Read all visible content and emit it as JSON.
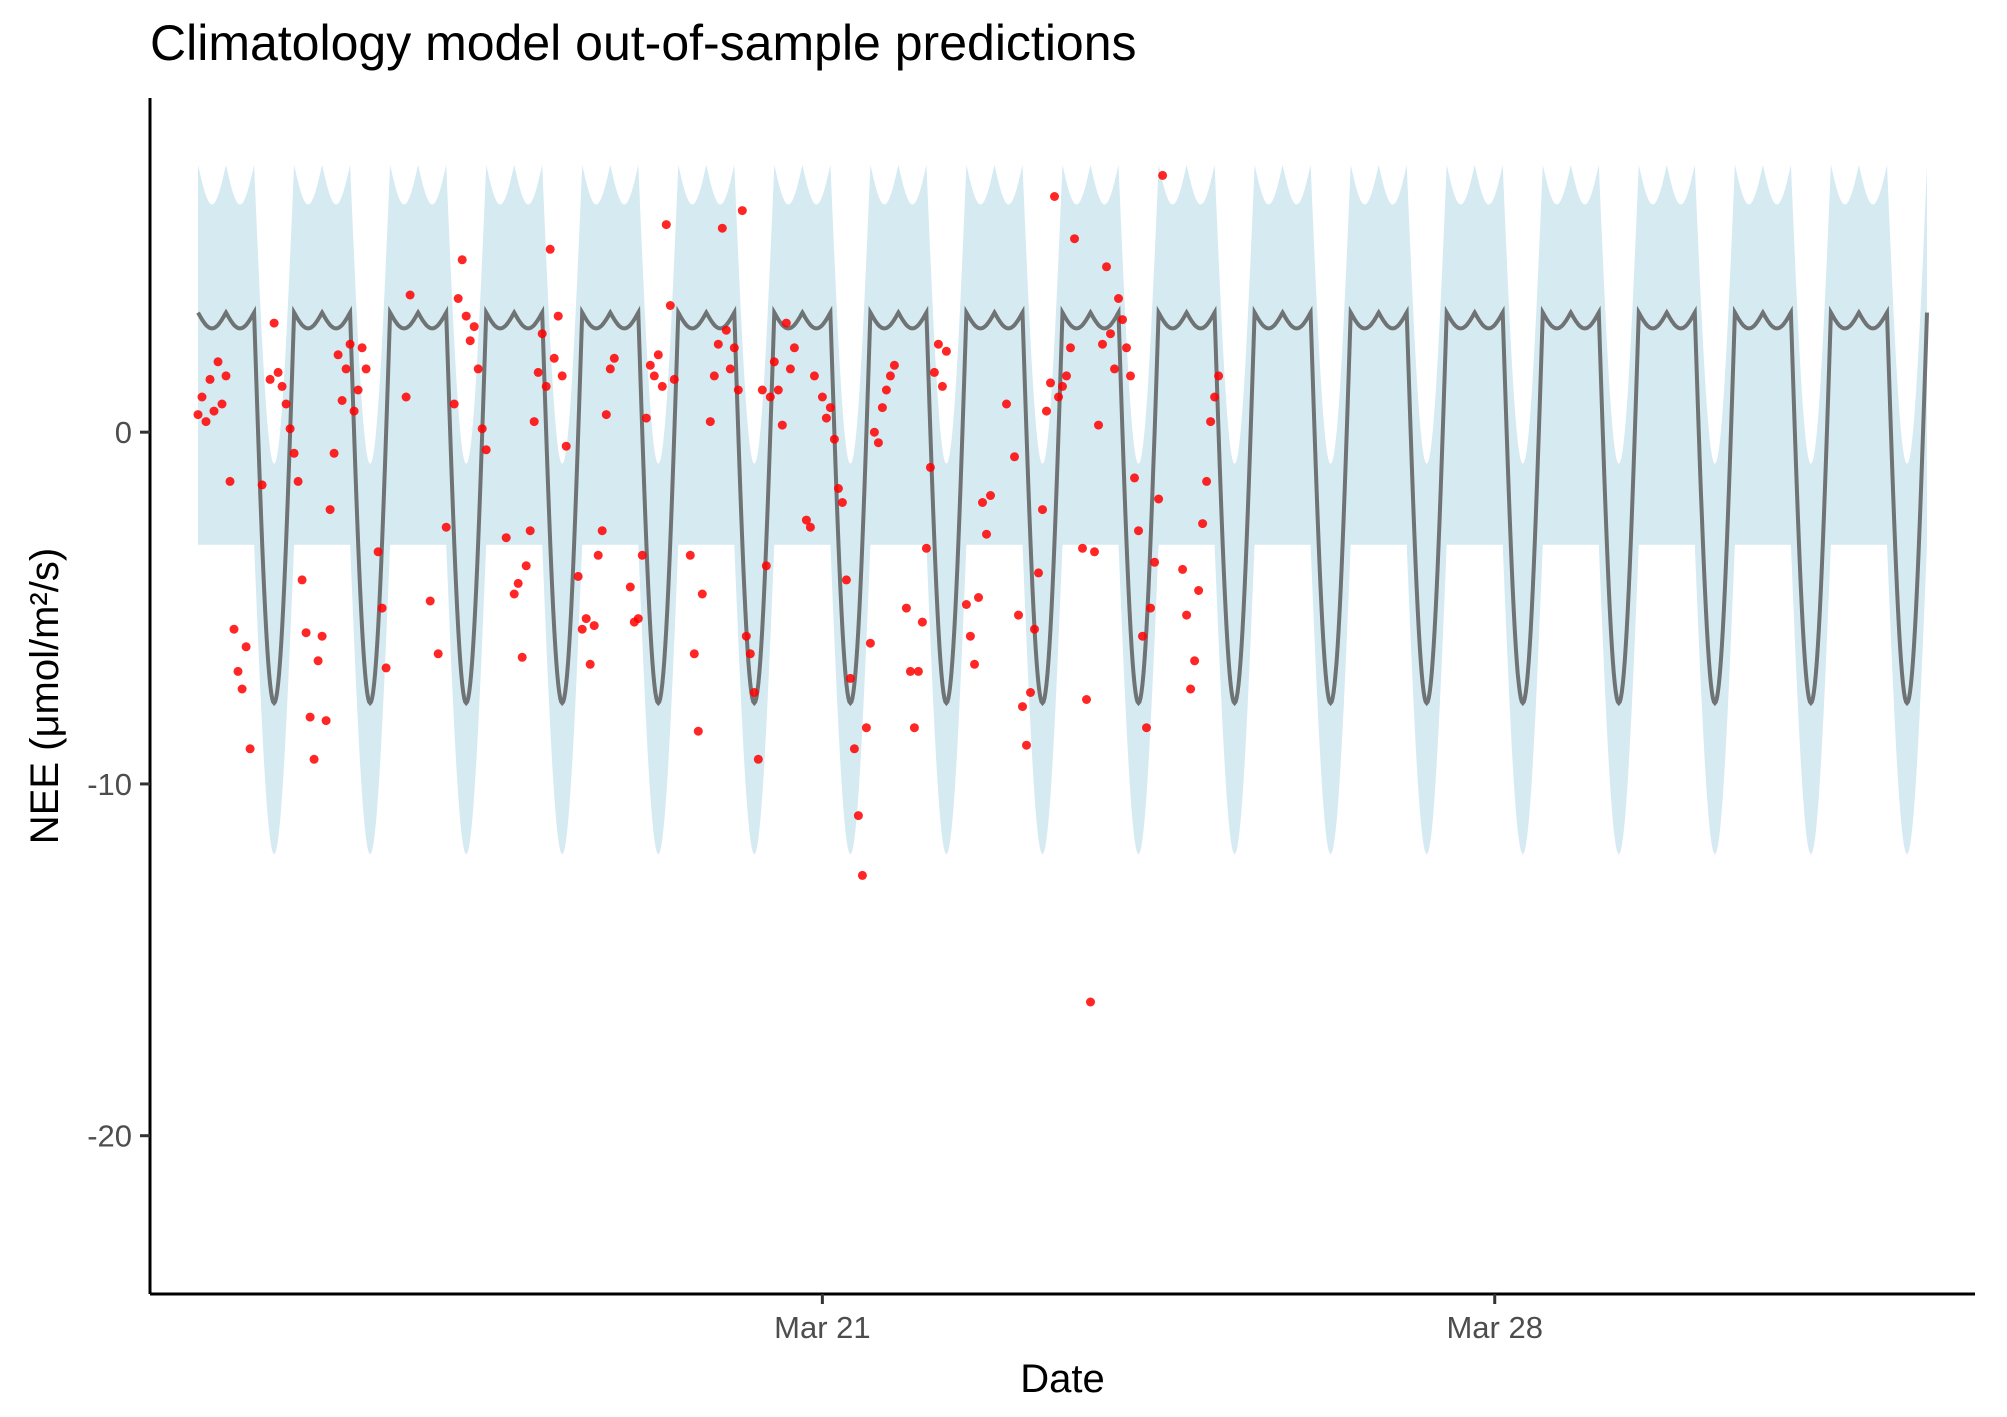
{
  "chart_data": {
    "type": "line",
    "title": "Climatology model out-of-sample predictions",
    "xlabel": "Date",
    "ylabel": "NEE (μmol/m²/s)",
    "x_tick_labels": [
      "Mar 21",
      "Mar 28"
    ],
    "y_tick_labels": [
      "-20",
      "-10",
      "0"
    ],
    "y_ticks": [
      -20,
      -10,
      0
    ],
    "xlim": [
      "2023-03-14",
      "2023-04-02"
    ],
    "ylim": [
      -24.5,
      9.5
    ],
    "data_range": [
      "2023-03-14 12:00",
      "2023-04-01 12:00"
    ],
    "grid": false,
    "legend": "none",
    "colors": {
      "band": "#d6eaf2",
      "forecast_mean": "#6f7374",
      "observed": "#ff0000",
      "axis": "#000000"
    },
    "series": [
      {
        "kind": "ribbon",
        "description": "Forecast 95% interval",
        "lower_daily_min": -12.0,
        "upper_daily_max": 7.6,
        "upper_night": -0.9,
        "lower_night": -3.2
      },
      {
        "kind": "line",
        "description": "Forecast mean (daily cycle)",
        "daily_min": -7.7,
        "daily_max": 3.4
      },
      {
        "kind": "scatter",
        "description": "Observed NEE",
        "points": [
          [
            "2023-03-14 12:00",
            0.5
          ],
          [
            "2023-03-14 13:00",
            1.0
          ],
          [
            "2023-03-14 14:00",
            0.3
          ],
          [
            "2023-03-14 15:00",
            1.5
          ],
          [
            "2023-03-14 16:00",
            0.6
          ],
          [
            "2023-03-14 17:00",
            2.0
          ],
          [
            "2023-03-14 18:00",
            0.8
          ],
          [
            "2023-03-14 19:00",
            1.6
          ],
          [
            "2023-03-14 20:00",
            -1.4
          ],
          [
            "2023-03-14 21:00",
            -5.6
          ],
          [
            "2023-03-14 22:00",
            -6.8
          ],
          [
            "2023-03-14 23:00",
            -7.3
          ],
          [
            "2023-03-15 00:00",
            -6.1
          ],
          [
            "2023-03-15 01:00",
            -9.0
          ],
          [
            "2023-03-15 04:00",
            -1.5
          ],
          [
            "2023-03-15 06:00",
            1.5
          ],
          [
            "2023-03-15 07:00",
            3.1
          ],
          [
            "2023-03-15 08:00",
            1.7
          ],
          [
            "2023-03-15 09:00",
            1.3
          ],
          [
            "2023-03-15 10:00",
            0.8
          ],
          [
            "2023-03-15 11:00",
            0.1
          ],
          [
            "2023-03-15 12:00",
            -0.6
          ],
          [
            "2023-03-15 13:00",
            -1.4
          ],
          [
            "2023-03-15 14:00",
            -4.2
          ],
          [
            "2023-03-15 15:00",
            -5.7
          ],
          [
            "2023-03-15 16:00",
            -8.1
          ],
          [
            "2023-03-15 17:00",
            -9.3
          ],
          [
            "2023-03-15 18:00",
            -6.5
          ],
          [
            "2023-03-15 19:00",
            -5.8
          ],
          [
            "2023-03-15 20:00",
            -8.2
          ],
          [
            "2023-03-15 21:00",
            -2.2
          ],
          [
            "2023-03-15 22:00",
            -0.6
          ],
          [
            "2023-03-15 23:00",
            2.2
          ],
          [
            "2023-03-16 00:00",
            0.9
          ],
          [
            "2023-03-16 01:00",
            1.8
          ],
          [
            "2023-03-16 02:00",
            2.5
          ],
          [
            "2023-03-16 03:00",
            0.6
          ],
          [
            "2023-03-16 04:00",
            1.2
          ],
          [
            "2023-03-16 05:00",
            2.4
          ],
          [
            "2023-03-16 06:00",
            1.8
          ],
          [
            "2023-03-16 09:00",
            -3.4
          ],
          [
            "2023-03-16 10:00",
            -5.0
          ],
          [
            "2023-03-16 11:00",
            -6.7
          ],
          [
            "2023-03-16 16:00",
            1.0
          ],
          [
            "2023-03-16 17:00",
            3.9
          ],
          [
            "2023-03-16 22:00",
            -4.8
          ],
          [
            "2023-03-17 00:00",
            -6.3
          ],
          [
            "2023-03-17 02:00",
            -2.7
          ],
          [
            "2023-03-17 04:00",
            0.8
          ],
          [
            "2023-03-17 05:00",
            3.8
          ],
          [
            "2023-03-17 06:00",
            4.9
          ],
          [
            "2023-03-17 07:00",
            3.3
          ],
          [
            "2023-03-17 08:00",
            2.6
          ],
          [
            "2023-03-17 09:00",
            3.0
          ],
          [
            "2023-03-17 10:00",
            1.8
          ],
          [
            "2023-03-17 11:00",
            0.1
          ],
          [
            "2023-03-17 12:00",
            -0.5
          ],
          [
            "2023-03-17 17:00",
            -3.0
          ],
          [
            "2023-03-17 19:00",
            -4.6
          ],
          [
            "2023-03-17 20:00",
            -4.3
          ],
          [
            "2023-03-17 21:00",
            -6.4
          ],
          [
            "2023-03-17 22:00",
            -3.8
          ],
          [
            "2023-03-17 23:00",
            -2.8
          ],
          [
            "2023-03-18 00:00",
            0.3
          ],
          [
            "2023-03-18 01:00",
            1.7
          ],
          [
            "2023-03-18 02:00",
            2.8
          ],
          [
            "2023-03-18 03:00",
            1.3
          ],
          [
            "2023-03-18 04:00",
            5.2
          ],
          [
            "2023-03-18 05:00",
            2.1
          ],
          [
            "2023-03-18 06:00",
            3.3
          ],
          [
            "2023-03-18 07:00",
            1.6
          ],
          [
            "2023-03-18 08:00",
            -0.4
          ],
          [
            "2023-03-18 11:00",
            -4.1
          ],
          [
            "2023-03-18 12:00",
            -5.6
          ],
          [
            "2023-03-18 13:00",
            -5.3
          ],
          [
            "2023-03-18 14:00",
            -6.6
          ],
          [
            "2023-03-18 15:00",
            -5.5
          ],
          [
            "2023-03-18 16:00",
            -3.5
          ],
          [
            "2023-03-18 17:00",
            -2.8
          ],
          [
            "2023-03-18 18:00",
            0.5
          ],
          [
            "2023-03-18 19:00",
            1.8
          ],
          [
            "2023-03-18 20:00",
            2.1
          ],
          [
            "2023-03-19 00:00",
            -4.4
          ],
          [
            "2023-03-19 01:00",
            -5.4
          ],
          [
            "2023-03-19 02:00",
            -5.3
          ],
          [
            "2023-03-19 03:00",
            -3.5
          ],
          [
            "2023-03-19 04:00",
            0.4
          ],
          [
            "2023-03-19 05:00",
            1.9
          ],
          [
            "2023-03-19 06:00",
            1.6
          ],
          [
            "2023-03-19 07:00",
            2.2
          ],
          [
            "2023-03-19 08:00",
            1.3
          ],
          [
            "2023-03-19 09:00",
            5.9
          ],
          [
            "2023-03-19 10:00",
            3.6
          ],
          [
            "2023-03-19 11:00",
            1.5
          ],
          [
            "2023-03-19 15:00",
            -3.5
          ],
          [
            "2023-03-19 16:00",
            -6.3
          ],
          [
            "2023-03-19 17:00",
            -8.5
          ],
          [
            "2023-03-19 18:00",
            -4.6
          ],
          [
            "2023-03-19 20:00",
            0.3
          ],
          [
            "2023-03-19 21:00",
            1.6
          ],
          [
            "2023-03-19 22:00",
            2.5
          ],
          [
            "2023-03-19 23:00",
            5.8
          ],
          [
            "2023-03-20 00:00",
            2.9
          ],
          [
            "2023-03-20 01:00",
            1.8
          ],
          [
            "2023-03-20 02:00",
            2.4
          ],
          [
            "2023-03-20 03:00",
            1.2
          ],
          [
            "2023-03-20 04:00",
            6.3
          ],
          [
            "2023-03-20 05:00",
            -5.8
          ],
          [
            "2023-03-20 06:00",
            -6.3
          ],
          [
            "2023-03-20 07:00",
            -7.4
          ],
          [
            "2023-03-20 08:00",
            -9.3
          ],
          [
            "2023-03-20 09:00",
            1.2
          ],
          [
            "2023-03-20 10:00",
            -3.8
          ],
          [
            "2023-03-20 11:00",
            1.0
          ],
          [
            "2023-03-20 12:00",
            2.0
          ],
          [
            "2023-03-20 13:00",
            1.2
          ],
          [
            "2023-03-20 14:00",
            0.2
          ],
          [
            "2023-03-20 15:00",
            3.1
          ],
          [
            "2023-03-20 16:00",
            1.8
          ],
          [
            "2023-03-20 17:00",
            2.4
          ],
          [
            "2023-03-20 20:00",
            -2.5
          ],
          [
            "2023-03-20 21:00",
            -2.7
          ],
          [
            "2023-03-20 22:00",
            1.6
          ],
          [
            "2023-03-21 00:00",
            1.0
          ],
          [
            "2023-03-21 01:00",
            0.4
          ],
          [
            "2023-03-21 02:00",
            0.7
          ],
          [
            "2023-03-21 03:00",
            -0.2
          ],
          [
            "2023-03-21 04:00",
            -1.6
          ],
          [
            "2023-03-21 05:00",
            -2.0
          ],
          [
            "2023-03-21 06:00",
            -4.2
          ],
          [
            "2023-03-21 07:00",
            -7.0
          ],
          [
            "2023-03-21 08:00",
            -9.0
          ],
          [
            "2023-03-21 09:00",
            -10.9
          ],
          [
            "2023-03-21 10:00",
            -12.6
          ],
          [
            "2023-03-21 11:00",
            -8.4
          ],
          [
            "2023-03-21 12:00",
            -6.0
          ],
          [
            "2023-03-21 13:00",
            0.0
          ],
          [
            "2023-03-21 14:00",
            -0.3
          ],
          [
            "2023-03-21 15:00",
            0.7
          ],
          [
            "2023-03-21 16:00",
            1.2
          ],
          [
            "2023-03-21 17:00",
            1.6
          ],
          [
            "2023-03-21 18:00",
            1.9
          ],
          [
            "2023-03-21 21:00",
            -5.0
          ],
          [
            "2023-03-21 22:00",
            -6.8
          ],
          [
            "2023-03-21 23:00",
            -8.4
          ],
          [
            "2023-03-22 00:00",
            -6.8
          ],
          [
            "2023-03-22 01:00",
            -5.4
          ],
          [
            "2023-03-22 02:00",
            -3.3
          ],
          [
            "2023-03-22 03:00",
            -1.0
          ],
          [
            "2023-03-22 04:00",
            1.7
          ],
          [
            "2023-03-22 05:00",
            2.5
          ],
          [
            "2023-03-22 06:00",
            1.3
          ],
          [
            "2023-03-22 07:00",
            2.3
          ],
          [
            "2023-03-22 12:00",
            -4.9
          ],
          [
            "2023-03-22 13:00",
            -5.8
          ],
          [
            "2023-03-22 14:00",
            -6.6
          ],
          [
            "2023-03-22 15:00",
            -4.7
          ],
          [
            "2023-03-22 16:00",
            -2.0
          ],
          [
            "2023-03-22 17:00",
            -2.9
          ],
          [
            "2023-03-22 18:00",
            -1.8
          ],
          [
            "2023-03-22 22:00",
            0.8
          ],
          [
            "2023-03-23 00:00",
            -0.7
          ],
          [
            "2023-03-23 01:00",
            -5.2
          ],
          [
            "2023-03-23 02:00",
            -7.8
          ],
          [
            "2023-03-23 03:00",
            -8.9
          ],
          [
            "2023-03-23 04:00",
            -7.4
          ],
          [
            "2023-03-23 05:00",
            -5.6
          ],
          [
            "2023-03-23 06:00",
            -4.0
          ],
          [
            "2023-03-23 07:00",
            -2.2
          ],
          [
            "2023-03-23 08:00",
            0.6
          ],
          [
            "2023-03-23 09:00",
            1.4
          ],
          [
            "2023-03-23 10:00",
            6.7
          ],
          [
            "2023-03-23 11:00",
            1.0
          ],
          [
            "2023-03-23 12:00",
            1.3
          ],
          [
            "2023-03-23 13:00",
            1.6
          ],
          [
            "2023-03-23 14:00",
            2.4
          ],
          [
            "2023-03-23 15:00",
            5.5
          ],
          [
            "2023-03-23 17:00",
            -3.3
          ],
          [
            "2023-03-23 18:00",
            -7.6
          ],
          [
            "2023-03-23 19:00",
            -16.2
          ],
          [
            "2023-03-23 20:00",
            -3.4
          ],
          [
            "2023-03-23 21:00",
            0.2
          ],
          [
            "2023-03-23 22:00",
            2.5
          ],
          [
            "2023-03-23 23:00",
            4.7
          ],
          [
            "2023-03-24 00:00",
            2.8
          ],
          [
            "2023-03-24 01:00",
            1.8
          ],
          [
            "2023-03-24 02:00",
            3.8
          ],
          [
            "2023-03-24 03:00",
            3.2
          ],
          [
            "2023-03-24 04:00",
            2.4
          ],
          [
            "2023-03-24 05:00",
            1.6
          ],
          [
            "2023-03-24 06:00",
            -1.3
          ],
          [
            "2023-03-24 07:00",
            -2.8
          ],
          [
            "2023-03-24 08:00",
            -5.8
          ],
          [
            "2023-03-24 09:00",
            -8.4
          ],
          [
            "2023-03-24 10:00",
            -5.0
          ],
          [
            "2023-03-24 11:00",
            -3.7
          ],
          [
            "2023-03-24 12:00",
            -1.9
          ],
          [
            "2023-03-24 13:00",
            7.3
          ],
          [
            "2023-03-24 18:00",
            -3.9
          ],
          [
            "2023-03-24 19:00",
            -5.2
          ],
          [
            "2023-03-24 20:00",
            -7.3
          ],
          [
            "2023-03-24 21:00",
            -6.5
          ],
          [
            "2023-03-24 22:00",
            -4.5
          ],
          [
            "2023-03-24 23:00",
            -2.6
          ],
          [
            "2023-03-25 00:00",
            -1.4
          ],
          [
            "2023-03-25 01:00",
            0.3
          ],
          [
            "2023-03-25 02:00",
            1.0
          ],
          [
            "2023-03-25 03:00",
            1.6
          ]
        ]
      }
    ]
  }
}
